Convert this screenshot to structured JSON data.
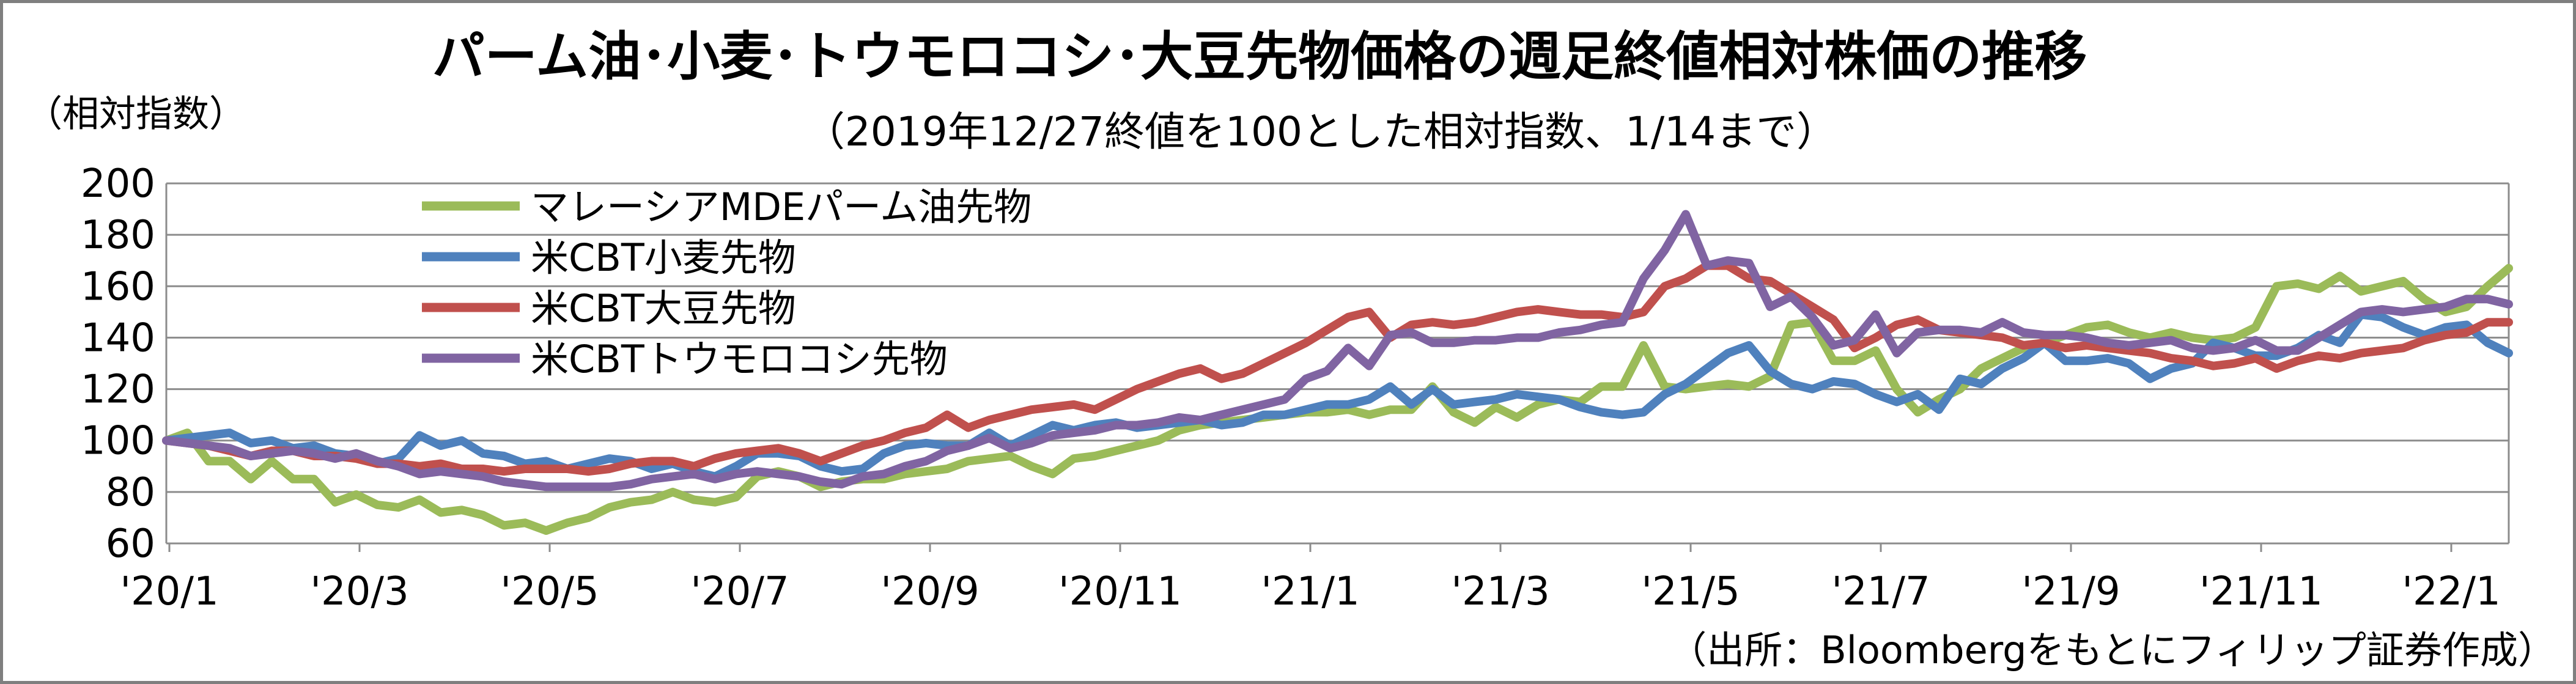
{
  "chart_data": {
    "type": "line",
    "title": "パーム油･小麦･トウモロコシ･大豆先物価格の週足終値相対株価の推移",
    "subtitle": "（2019年12/27終値を100とした相対指数、1/14まで）",
    "ylabel": "（相対指数）",
    "source": "（出所：Bloombergをもとにフィリップ証券作成）",
    "ylim": [
      60,
      200
    ],
    "y_ticks": [
      "60",
      "80",
      "100",
      "120",
      "140",
      "160",
      "180",
      "200"
    ],
    "x_ticks": [
      "'20/1",
      "'20/3",
      "'20/5",
      "'20/7",
      "'20/9",
      "'20/11",
      "'21/1",
      "'21/3",
      "'21/5",
      "'21/7",
      "'21/9",
      "'21/11",
      "'22/1"
    ],
    "grid": true,
    "legend_position": "top-left",
    "colors": {
      "palm": "#9bbb59",
      "wheat": "#4f81bd",
      "soy": "#c0504d",
      "corn": "#8064a2"
    },
    "series": [
      {
        "name": "マレーシアMDEパーム油先物",
        "color": "#9bbb59",
        "values": [
          100,
          103,
          92,
          92,
          85,
          92,
          85,
          85,
          76,
          79,
          75,
          74,
          77,
          72,
          73,
          71,
          67,
          68,
          65,
          68,
          70,
          74,
          76,
          77,
          80,
          77,
          76,
          78,
          86,
          88,
          86,
          82,
          84,
          85,
          85,
          87,
          88,
          89,
          92,
          93,
          94,
          90,
          87,
          93,
          94,
          96,
          98,
          100,
          104,
          106,
          107,
          108,
          109,
          110,
          111,
          111,
          112,
          110,
          112,
          112,
          121,
          111,
          107,
          113,
          109,
          114,
          116,
          115,
          121,
          121,
          137,
          121,
          120,
          121,
          122,
          121,
          125,
          145,
          146,
          131,
          131,
          135,
          120,
          111,
          116,
          120,
          128,
          132,
          136,
          138,
          141,
          144,
          145,
          142,
          140,
          142,
          140,
          139,
          140,
          144,
          160,
          161,
          159,
          164,
          158,
          160,
          162,
          155,
          150,
          152,
          160,
          167
        ]
      },
      {
        "name": "米CBT小麦先物",
        "color": "#4f81bd",
        "values": [
          100,
          101,
          102,
          103,
          99,
          100,
          97,
          98,
          95,
          94,
          91,
          93,
          102,
          98,
          100,
          95,
          94,
          91,
          92,
          89,
          91,
          93,
          92,
          89,
          91,
          88,
          86,
          90,
          95,
          95,
          94,
          90,
          88,
          89,
          95,
          98,
          99,
          98,
          98,
          103,
          98,
          102,
          106,
          104,
          106,
          107,
          105,
          106,
          107,
          108,
          106,
          107,
          110,
          110,
          112,
          114,
          114,
          116,
          121,
          114,
          120,
          114,
          115,
          116,
          118,
          117,
          116,
          113,
          111,
          110,
          111,
          118,
          122,
          128,
          134,
          137,
          127,
          122,
          120,
          123,
          122,
          118,
          115,
          118,
          112,
          124,
          122,
          128,
          132,
          138,
          131,
          131,
          132,
          130,
          124,
          128,
          130,
          138,
          136,
          133,
          133,
          136,
          141,
          138,
          149,
          148,
          144,
          141,
          144,
          145,
          138,
          134
        ]
      },
      {
        "name": "米CBT大豆先物",
        "color": "#c0504d",
        "values": [
          100,
          99,
          98,
          96,
          94,
          96,
          96,
          94,
          94,
          93,
          91,
          91,
          90,
          91,
          89,
          89,
          88,
          89,
          89,
          89,
          88,
          89,
          91,
          92,
          92,
          90,
          93,
          95,
          96,
          97,
          95,
          92,
          95,
          98,
          100,
          103,
          105,
          110,
          105,
          108,
          110,
          112,
          113,
          114,
          112,
          116,
          120,
          123,
          126,
          128,
          124,
          126,
          130,
          134,
          138,
          143,
          148,
          150,
          140,
          145,
          146,
          145,
          146,
          148,
          150,
          151,
          150,
          149,
          149,
          148,
          150,
          160,
          163,
          168,
          168,
          163,
          162,
          157,
          152,
          147,
          136,
          140,
          145,
          147,
          143,
          142,
          141,
          140,
          137,
          138,
          136,
          137,
          136,
          135,
          134,
          132,
          131,
          129,
          130,
          132,
          128,
          131,
          133,
          132,
          134,
          135,
          136,
          139,
          141,
          142,
          146,
          146
        ]
      },
      {
        "name": "米CBTトウモロコシ先物",
        "color": "#8064a2",
        "values": [
          100,
          99,
          98,
          97,
          94,
          95,
          96,
          95,
          93,
          95,
          92,
          90,
          87,
          88,
          87,
          86,
          84,
          83,
          82,
          82,
          82,
          82,
          83,
          85,
          86,
          87,
          85,
          87,
          88,
          87,
          86,
          84,
          83,
          86,
          87,
          90,
          92,
          96,
          98,
          101,
          97,
          99,
          102,
          103,
          104,
          106,
          106,
          107,
          109,
          108,
          110,
          112,
          114,
          116,
          124,
          127,
          136,
          129,
          141,
          142,
          138,
          138,
          139,
          139,
          140,
          140,
          142,
          143,
          145,
          146,
          163,
          174,
          188,
          168,
          170,
          169,
          152,
          156,
          148,
          137,
          139,
          149,
          134,
          142,
          143,
          143,
          142,
          146,
          142,
          141,
          141,
          140,
          138,
          137,
          138,
          139,
          136,
          135,
          136,
          139,
          135,
          135,
          140,
          145,
          150,
          151,
          150,
          151,
          152,
          155,
          155,
          153
        ]
      }
    ]
  }
}
